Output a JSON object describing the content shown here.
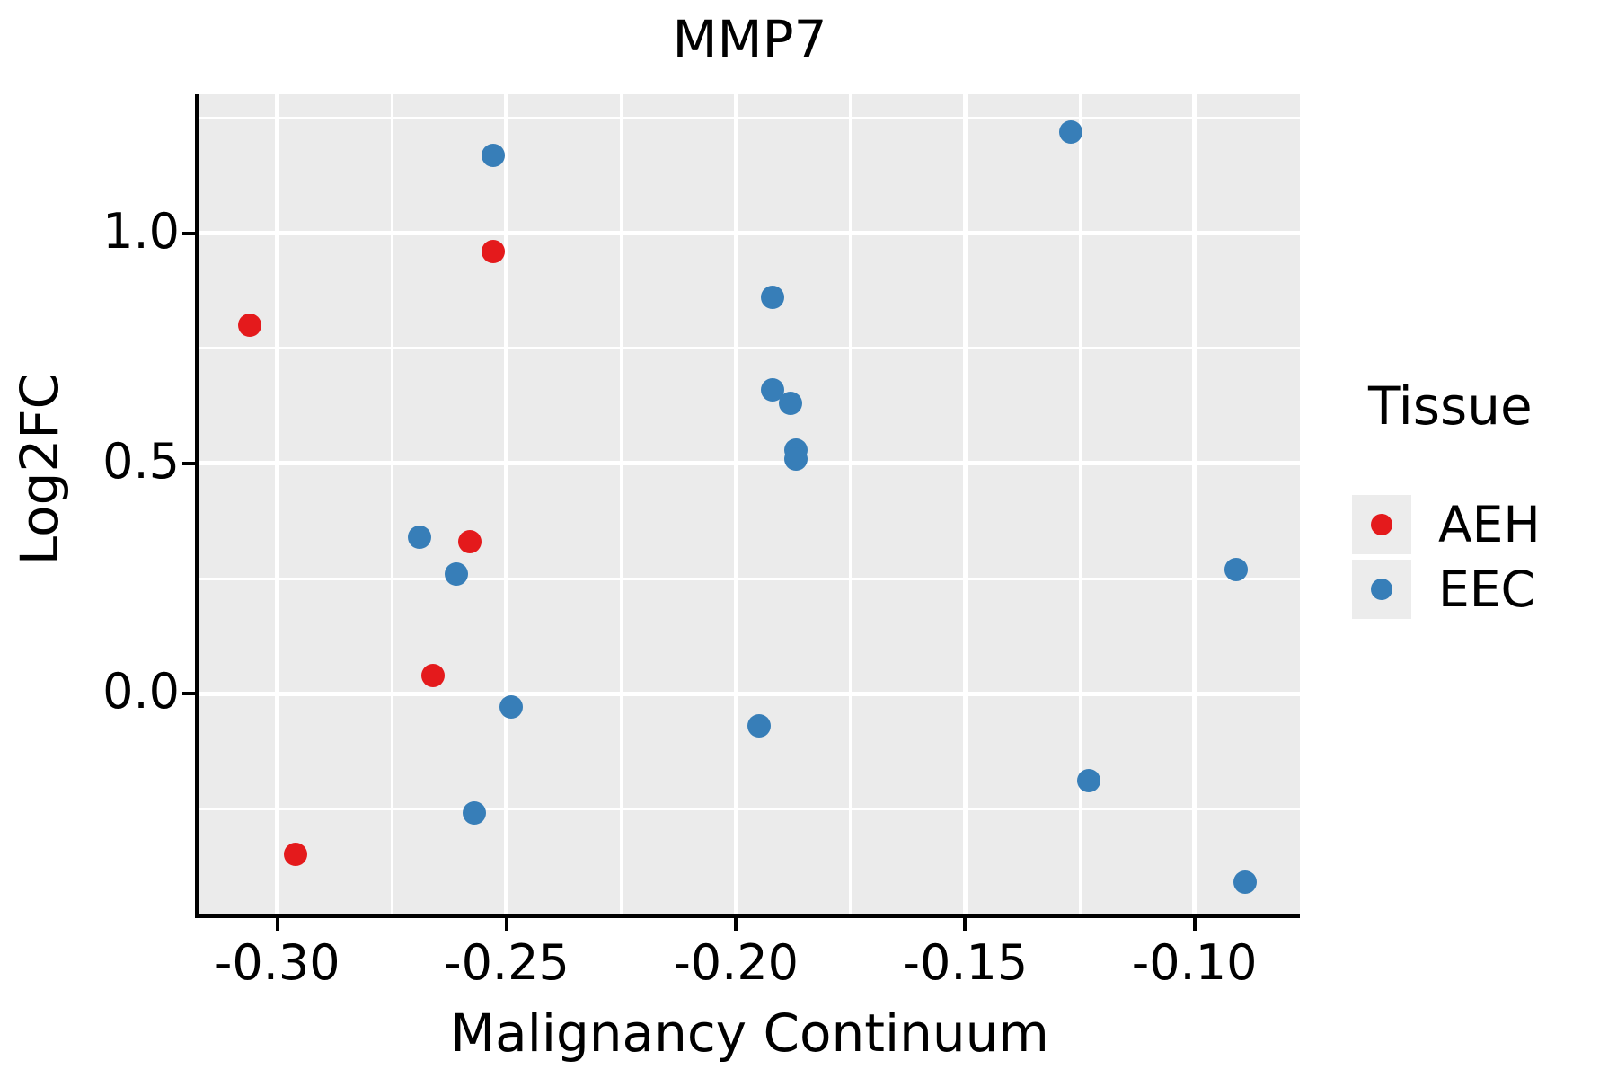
{
  "chart": {
    "title": "MMP7",
    "xlabel": "Malignancy Continuum",
    "ylabel": "Log2FC",
    "legend": {
      "title": "Tissue",
      "entries": [
        {
          "label": "AEH",
          "color": "#E41A1C"
        },
        {
          "label": "EEC",
          "color": "#377EB8"
        }
      ]
    }
  },
  "chart_data": {
    "type": "scatter",
    "title": "MMP7",
    "xlabel": "Malignancy Continuum",
    "ylabel": "Log2FC",
    "legend_title": "Tissue",
    "legend_position": "right",
    "grid": true,
    "series": [
      {
        "name": "AEH",
        "color": "#E41A1C",
        "points": [
          [
            -0.306,
            0.8
          ],
          [
            -0.253,
            0.96
          ],
          [
            -0.258,
            0.33
          ],
          [
            -0.266,
            0.04
          ],
          [
            -0.296,
            -0.35
          ]
        ]
      },
      {
        "name": "EEC",
        "color": "#377EB8",
        "points": [
          [
            -0.253,
            1.17
          ],
          [
            -0.127,
            1.22
          ],
          [
            -0.192,
            0.86
          ],
          [
            -0.192,
            0.66
          ],
          [
            -0.188,
            0.63
          ],
          [
            -0.187,
            0.53
          ],
          [
            -0.187,
            0.51
          ],
          [
            -0.269,
            0.34
          ],
          [
            -0.261,
            0.26
          ],
          [
            -0.091,
            0.27
          ],
          [
            -0.249,
            -0.03
          ],
          [
            -0.195,
            -0.07
          ],
          [
            -0.123,
            -0.19
          ],
          [
            -0.257,
            -0.26
          ],
          [
            -0.089,
            -0.41
          ]
        ]
      }
    ],
    "x_axis": {
      "min": -0.317,
      "max": -0.077,
      "ticks": [
        -0.3,
        -0.25,
        -0.2,
        -0.15,
        -0.1
      ],
      "tick_labels": [
        "-0.30",
        "-0.25",
        "-0.20",
        "-0.15",
        "-0.10"
      ],
      "minor_ticks": [
        -0.275,
        -0.225,
        -0.175,
        -0.125
      ]
    },
    "y_axis": {
      "min": -0.478,
      "max": 1.302,
      "ticks": [
        1.0,
        0.5,
        0.0
      ],
      "tick_labels": [
        "1.0",
        "0.5",
        "0.0"
      ],
      "minor_ticks": [
        1.25,
        0.75,
        0.25,
        -0.25
      ]
    },
    "styles": {
      "panel_background": "#EBEBEB",
      "gridline_color": "#FFFFFF",
      "axis_color": "#000000",
      "text_color": "#000000",
      "legend_key_background": "#ECECEC"
    }
  }
}
